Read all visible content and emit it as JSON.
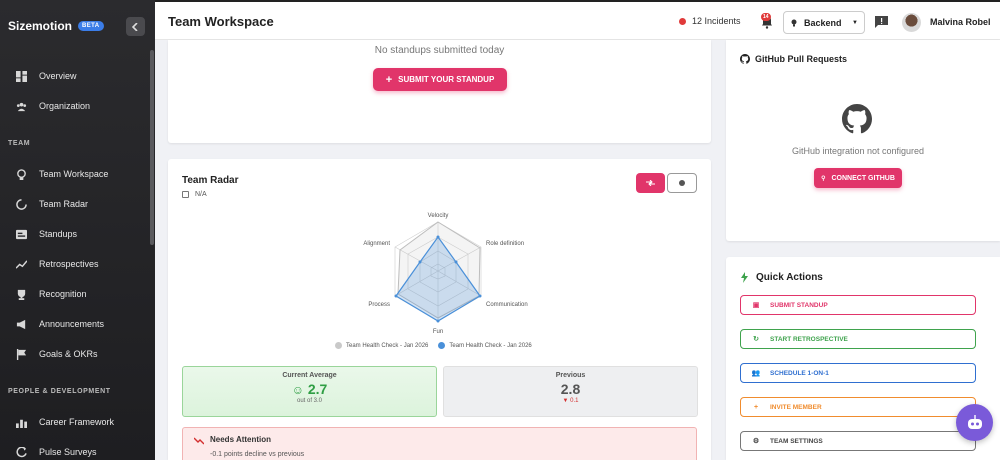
{
  "sidebar": {
    "brand": "Sizemotion",
    "beta": "BETA",
    "items_top": [
      {
        "label": "Overview",
        "icon": "dashboard-icon"
      },
      {
        "label": "Organization",
        "icon": "people-icon"
      }
    ],
    "section_team": "TEAM",
    "items_team": [
      {
        "label": "Team Workspace",
        "icon": "workspace-icon"
      },
      {
        "label": "Team Radar",
        "icon": "radar-icon"
      },
      {
        "label": "Standups",
        "icon": "standup-icon"
      },
      {
        "label": "Retrospectives",
        "icon": "trend-icon"
      },
      {
        "label": "Recognition",
        "icon": "trophy-icon"
      },
      {
        "label": "Announcements",
        "icon": "megaphone-icon"
      },
      {
        "label": "Goals & OKRs",
        "icon": "flag-icon"
      }
    ],
    "section_people": "PEOPLE & DEVELOPMENT",
    "items_people": [
      {
        "label": "Career Framework",
        "icon": "bar-chart-icon"
      },
      {
        "label": "Pulse Surveys",
        "icon": "pulse-icon"
      }
    ]
  },
  "topbar": {
    "title": "Team Workspace",
    "incidents": "12 Incidents",
    "notification_count": "14",
    "project": "Backend",
    "username": "Malvina Robel"
  },
  "standup": {
    "empty_text": "No standups submitted today",
    "submit_label": "SUBMIT YOUR STANDUP"
  },
  "radar": {
    "title": "Team Radar",
    "date": "N/A",
    "axes": [
      "Velocity",
      "Role definition",
      "Communication",
      "Fun",
      "Process",
      "Alignment"
    ],
    "legend": [
      "Team Health Check - Jan 2026",
      "Team Health Check - Jan 2026"
    ],
    "current_label": "Current Average",
    "current_value": "2.7",
    "current_sub": "out of 3.0",
    "previous_label": "Previous",
    "previous_value": "2.8",
    "previous_sub": "▼ 0.1",
    "attention_title": "Needs Attention",
    "attention_sub": "-0.1 points decline vs previous"
  },
  "github": {
    "title": "GitHub Pull Requests",
    "message": "GitHub integration not configured",
    "connect_label": "CONNECT GITHUB"
  },
  "quick_actions": {
    "title": "Quick Actions",
    "buttons": [
      {
        "label": "SUBMIT STANDUP",
        "color": "#e1356a",
        "icon": "standup-icon"
      },
      {
        "label": "START RETROSPECTIVE",
        "color": "#3fa34d",
        "icon": "refresh-icon"
      },
      {
        "label": "SCHEDULE 1-ON-1",
        "color": "#2f6fd0",
        "icon": "people-icon"
      },
      {
        "label": "INVITE MEMBER",
        "color": "#f08c2e",
        "icon": "add-person-icon"
      },
      {
        "label": "TEAM SETTINGS",
        "color": "#555555",
        "icon": "gear-icon"
      }
    ]
  },
  "colors": {
    "accent": "#e1356a",
    "sidebar_bg": "#262629",
    "radar_current": "#4a90d9",
    "radar_previous": "#bdbdbd"
  }
}
